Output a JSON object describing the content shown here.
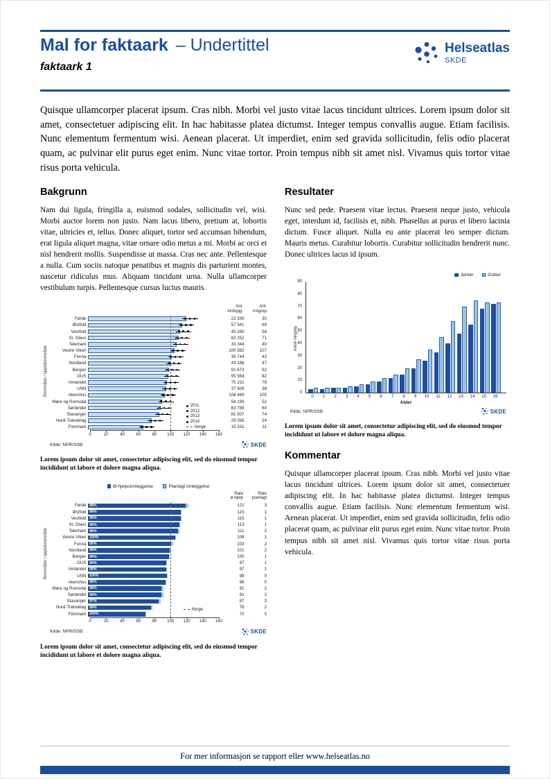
{
  "header": {
    "title_bold": "Mal for faktaark",
    "title_rest": "– Undertittel",
    "subtitle": "faktaark 1",
    "logo_name": "Helseatlas",
    "logo_sub": "SKDE"
  },
  "logos": {
    "skde": "SKDE"
  },
  "intro": "Quisque ullamcorper placerat ipsum. Cras nibh. Morbi vel justo vitae lacus tincidunt ultrices. Lorem ipsum dolor sit amet, consectetuer adipiscing elit. In hac habitasse platea dictumst. Integer tempus convallis augue. Etiam facilisis. Nunc elementum fermentum wisi. Aenean placerat. Ut imperdiet, enim sed gravida sollicitudin, felis odio placerat quam, ac pulvinar elit purus eget enim. Nunc vitae tortor. Proin tempus nibh sit amet nisl. Vivamus quis tortor vitae risus porta vehicula.",
  "sections": {
    "bakgrunn": {
      "heading": "Bakgrunn",
      "body": "Nam dui ligula, fringilla a, euismod sodales, sollicitudin vel, wisi. Morbi auctor lorem non justo. Nam lacus libero, pretium at, lobortis vitae, ultricies et, tellus. Donec aliquet, tortor sed accumsan bibendum, erat ligula aliquet magna, vitae ornare odio metus a mi. Morbi ac orci et nisl hendrerit mollis. Suspendisse ut massa. Cras nec ante. Pellentesque a nulla. Cum sociis natoque penatibus et magnis dis parturient montes, nascetur ridiculus mus. Aliquam tincidunt urna. Nulla ullamcorper vestibulum turpis. Pellentesque cursus luctus mauris."
    },
    "resultater": {
      "heading": "Resultater",
      "body": "Nunc sed pede. Praesent vitae lectus. Praesent neque justo, vehicula eget, interdum id, facilisis et, nibh. Phasellus at purus et libero lacinia dictum. Fusce aliquet. Nulla eu ante placerat leo semper dictum. Mauris metus. Curabitur lobortis. Curabitur sollicitudin hendrerit nunc. Donec ultrices lacus id ipsum."
    },
    "kommentar": {
      "heading": "Kommentar",
      "body": "Quisque ullamcorper placerat ipsum. Cras nibh. Morbi vel justo vitae lacus tincidunt ultrices. Lorem ipsum dolor sit amet, consectetuer adipiscing elit. In hac habitasse platea dictumst. Integer tempus convallis augue. Etiam facilisis. Nunc elementum fermentum wisi. Aenean placerat. Ut imperdiet, enim sed gravida sollicitudin, felis odio placerat quam, ac pulvinar elit purus eget enim. Nunc vitae tortor. Proin tempus nibh sit amet nisl. Vivamus quis tortor vitae risus porta vehicula."
    }
  },
  "caption": "Lorem ipsum dolor sit amet, consectetur adipiscing elit, sed do eiusmod tempor incididunt ut labore et dolore magna aliqua.",
  "footer": {
    "text": "For mer informasjon se rapport eller www.helseatlas.no"
  },
  "colors": {
    "brand_blue": "#1a4e9c",
    "bar_dark": "#1f4e9c",
    "bar_light": "#9cc3e6",
    "bar_fill": "#c5d9ef"
  },
  "chart_data": [
    {
      "type": "bar",
      "orientation": "horizontal",
      "ylabel": "Boområde / opptaksområde",
      "col_headers": [
        "Ant.\ninnbygg.",
        "Ant.\ninngrep"
      ],
      "regions": [
        "Førde",
        "Østfold",
        "Vestfold",
        "St. Olavs",
        "Telemark",
        "Vestre Viken",
        "Fonna",
        "Nordland",
        "Bergen",
        "OUS",
        "Innlandet",
        "UNN",
        "Akershus",
        "Møre og Romsdal",
        "Sørlandet",
        "Stavanger",
        "Nord-Trøndelag",
        "Finnmark"
      ],
      "rates": [
        122,
        117,
        114,
        112,
        110,
        107,
        104,
        102,
        100,
        99,
        98,
        97,
        95,
        92,
        90,
        88,
        79,
        68
      ],
      "innbygg": [
        "23 330",
        "57 341",
        "45 330",
        "62 252",
        "33 344",
        "100 582",
        "39 744",
        "43 186",
        "91 673",
        "95 564",
        "75 231",
        "37 609",
        "108 469",
        "54 199",
        "83 788",
        "81 507",
        "29 056",
        "15 332"
      ],
      "inngrep": [
        "30",
        "69",
        "54",
        "71",
        "40",
        "107",
        "43",
        "47",
        "92",
        "82",
        "78",
        "38",
        "105",
        "52",
        "60",
        "74",
        "24",
        "11"
      ],
      "legend": [
        "2011",
        "2012",
        "2013",
        "2014",
        "Norge"
      ],
      "x_ticks": [
        0,
        20,
        40,
        60,
        80,
        100,
        120,
        140,
        160
      ],
      "xlim": [
        0,
        160
      ],
      "norge_value": 100,
      "source": "Kilde: NPR/SSB"
    },
    {
      "type": "bar",
      "orientation": "horizontal-stacked",
      "ylabel": "Boområde / opptaksområde",
      "legend": [
        "Ø-hjelpsinnleggelse",
        "Planlagt innleggelse"
      ],
      "col_headers": [
        "Rate\nø-hjelp",
        "Rate\nplanlagt"
      ],
      "regions": [
        "Førde",
        "Østfold",
        "Vestfold",
        "St. Olavs",
        "Telemark",
        "Vestre Viken",
        "Fonna",
        "Nordland",
        "Bergen",
        "OUS",
        "Innlandet",
        "UNN",
        "Akershus",
        "Møre og Romsdal",
        "Sørlandet",
        "Stavanger",
        "Nord-Trøndelag",
        "Finnmark"
      ],
      "pct": [
        "98%",
        "99%",
        "99%",
        "99%",
        "98%",
        "100%",
        "99%",
        "98%",
        "99%",
        "99%",
        "99%",
        "100%",
        "98%",
        "98%",
        "98%",
        "97%",
        "98%",
        "100%"
      ],
      "rate_ohjelp": [
        121,
        115,
        115,
        113,
        111,
        108,
        103,
        101,
        100,
        97,
        97,
        98,
        96,
        91,
        91,
        87,
        78,
        71
      ],
      "rate_planlagt": [
        3,
        1,
        1,
        1,
        2,
        1,
        2,
        2,
        1,
        1,
        1,
        0,
        0,
        2,
        2,
        3,
        2,
        0
      ],
      "x_ticks": [
        0,
        20,
        40,
        60,
        80,
        100,
        120,
        140,
        160
      ],
      "xlim": [
        0,
        160
      ],
      "norge_value": 100,
      "norge_label": "Norge",
      "source": "Kilde: NPR/SSB"
    },
    {
      "type": "bar",
      "orientation": "vertical",
      "xlabel": "Alder",
      "ylabel": "Antall inngrep",
      "categories": [
        "0",
        "1",
        "2",
        "3",
        "4",
        "5",
        "6",
        "7",
        "8",
        "9",
        "10",
        "11",
        "12",
        "13",
        "14",
        "15",
        "16"
      ],
      "series": [
        {
          "name": "Jenter",
          "values": [
            3,
            3,
            4,
            4,
            5,
            7,
            9,
            12,
            15,
            20,
            26,
            33,
            40,
            48,
            55,
            68,
            72
          ]
        },
        {
          "name": "Gutter",
          "values": [
            4,
            4,
            4,
            5,
            7,
            9,
            12,
            15,
            20,
            27,
            35,
            45,
            58,
            70,
            75,
            73,
            73
          ]
        }
      ],
      "ylim": [
        0,
        90
      ],
      "y_ticks": [
        0,
        10,
        20,
        30,
        40,
        50,
        60,
        70,
        80,
        90
      ],
      "source": "Kilde: NPR/SSB"
    }
  ]
}
